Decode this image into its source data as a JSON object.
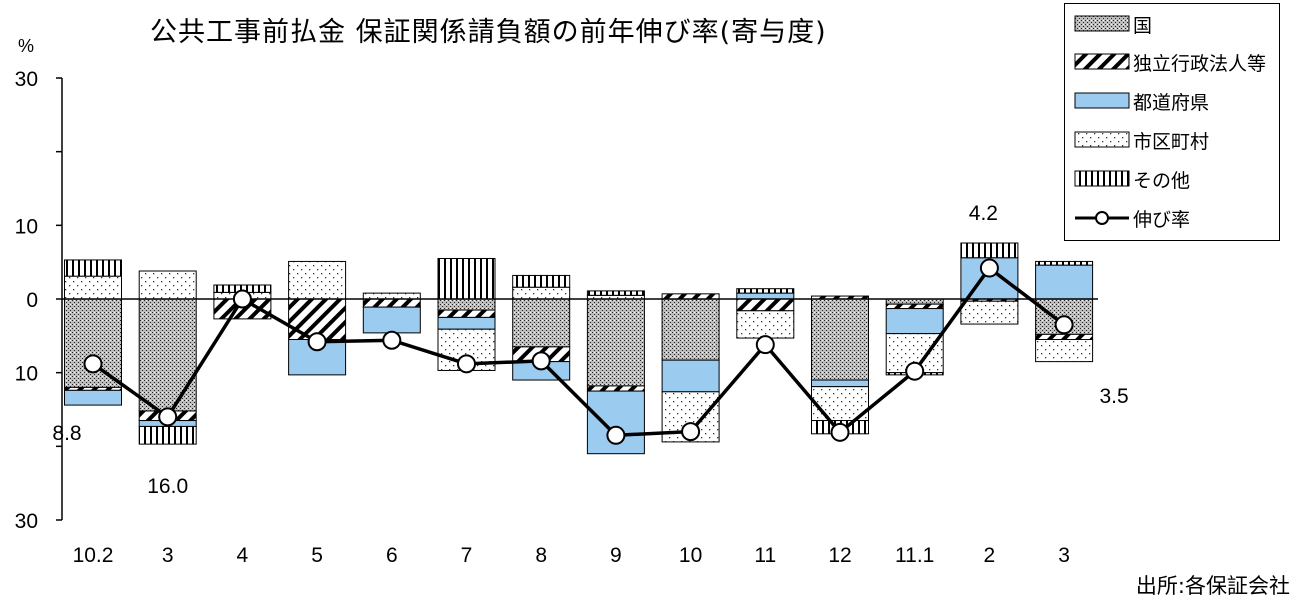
{
  "title": "公共工事前払金 保証関係請負額の前年伸び率(寄与度)",
  "source": "出所:各保証会社",
  "y_unit": "%",
  "chart_data": {
    "type": "bar",
    "stacked": true,
    "categories": [
      "10.2",
      "3",
      "4",
      "5",
      "6",
      "7",
      "8",
      "9",
      "10",
      "11",
      "12",
      "11.1",
      "2",
      "3"
    ],
    "ylim": [
      -30,
      30
    ],
    "yticks": [
      30,
      20,
      10,
      0,
      -10,
      -20,
      -30
    ],
    "ytick_labels": [
      "30",
      "",
      "10",
      "0",
      "10",
      "",
      "30"
    ],
    "legend_position": "top-right",
    "grid": false,
    "series": [
      {
        "name": "国",
        "key": "kuni",
        "values": [
          -12.0,
          -15.2,
          0.0,
          0.0,
          0.0,
          -1.5,
          -6.5,
          -11.8,
          -8.3,
          0.0,
          -11.0,
          -0.7,
          0.0,
          -4.8
        ]
      },
      {
        "name": "独立行政法人等",
        "key": "dokuritsu",
        "values": [
          -0.4,
          -1.3,
          -2.7,
          -5.5,
          -1.1,
          -1.0,
          -2.0,
          -0.7,
          0.7,
          -1.6,
          0.4,
          -0.6,
          -0.3,
          -0.7
        ]
      },
      {
        "name": "都道府県",
        "key": "todofuken",
        "values": [
          -2.0,
          -0.8,
          0.0,
          -4.8,
          -3.5,
          -1.6,
          -2.5,
          -8.5,
          -4.3,
          0.8,
          -0.9,
          -3.4,
          5.6,
          4.6
        ]
      },
      {
        "name": "市区町村",
        "key": "shikuchoson",
        "values": [
          3.1,
          3.8,
          0.9,
          5.1,
          0.8,
          -5.6,
          1.6,
          0.5,
          -6.8,
          -3.7,
          -4.6,
          -5.3,
          -3.1,
          -3.0
        ]
      },
      {
        "name": "その他",
        "key": "sonota",
        "values": [
          2.2,
          -2.4,
          1.0,
          0.0,
          0.0,
          5.5,
          1.6,
          0.6,
          0.0,
          0.6,
          -1.8,
          -0.3,
          2.0,
          0.5
        ]
      }
    ],
    "line": {
      "name": "伸び率",
      "values": [
        -8.8,
        -16.0,
        0.0,
        -5.8,
        -5.6,
        -8.8,
        -8.4,
        -18.5,
        -18.0,
        -6.2,
        -18.1,
        -9.8,
        4.2,
        -3.5
      ]
    },
    "annotations": [
      {
        "category_index": 0,
        "text": "8.8"
      },
      {
        "category_index": 1,
        "text": "16.0"
      },
      {
        "category_index": 12,
        "text": "4.2"
      },
      {
        "category_index": 13,
        "text": "3.5"
      }
    ]
  }
}
